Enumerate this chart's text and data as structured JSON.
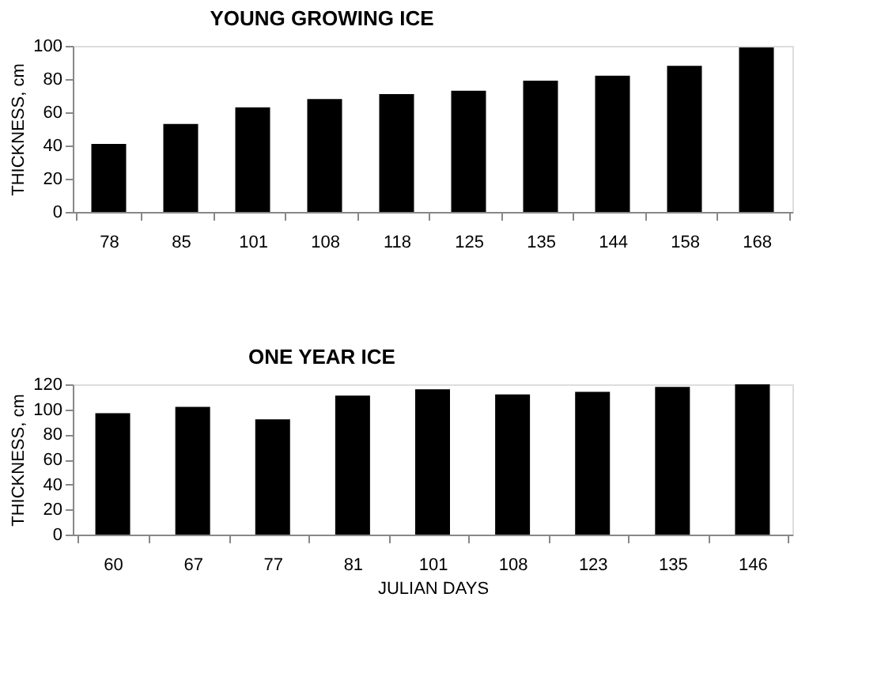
{
  "chart_data": [
    {
      "type": "bar",
      "title": "YOUNG GROWING ICE",
      "ylabel": "THICKNESS, cm",
      "categories": [
        "78",
        "85",
        "101",
        "108",
        "118",
        "125",
        "135",
        "144",
        "158",
        "168"
      ],
      "series": [
        {
          "color": "#000000",
          "values": [
            41,
            53,
            63,
            68,
            71,
            73,
            79,
            82,
            88,
            99
          ]
        }
      ],
      "ylim": [
        0,
        100
      ],
      "yticks": [
        0,
        20,
        40,
        60,
        80,
        100
      ],
      "grid": false
    },
    {
      "type": "bar",
      "title": "ONE YEAR ICE",
      "xlabel": "JULIAN DAYS",
      "ylabel": "THICKNESS, cm",
      "categories": [
        "60",
        "67",
        "77",
        "81",
        "101",
        "108",
        "123",
        "135",
        "146"
      ],
      "series": [
        {
          "color": "#000000",
          "values": [
            97,
            102,
            92,
            111,
            116,
            112,
            114,
            118,
            120
          ]
        }
      ],
      "ylim": [
        0,
        120
      ],
      "yticks": [
        0,
        20,
        40,
        60,
        80,
        100,
        120
      ],
      "grid": false
    }
  ]
}
